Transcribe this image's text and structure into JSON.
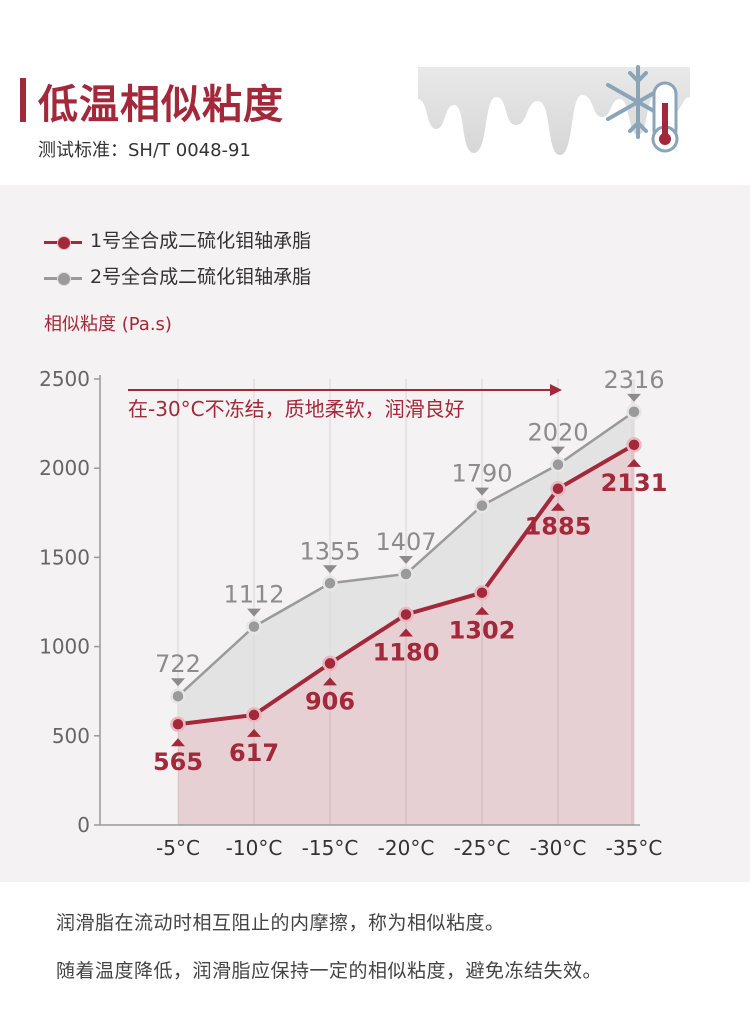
{
  "header": {
    "title": "低温相似粘度",
    "subtitle": "测试标准：SH/T 0048-91"
  },
  "colors": {
    "accent": "#a3283a",
    "series1": "#a3283a",
    "series2": "#9a9a9a",
    "panel": "#f4f2f2"
  },
  "annotation": "在-30°C不冻结，质地柔软，润滑良好",
  "footer": {
    "line1": "润滑脂在流动时相互阻止的内摩擦，称为相似粘度。",
    "line2": "随着温度降低，润滑脂应保持一定的相似粘度，避免冻结失效。"
  },
  "chart_data": {
    "type": "line",
    "categories": [
      "-5°C",
      "-10°C",
      "-15°C",
      "-20°C",
      "-25°C",
      "-30°C",
      "-35°C"
    ],
    "series": [
      {
        "name": "1号全合成二硫化钼轴承脂",
        "values": [
          565,
          617,
          906,
          1180,
          1302,
          1885,
          2131
        ]
      },
      {
        "name": "2号全合成二硫化钼轴承脂",
        "values": [
          722,
          1112,
          1355,
          1407,
          1790,
          2020,
          2316
        ]
      }
    ],
    "ylabel": "相似粘度 (Pa.s)",
    "ylim": [
      0,
      2500
    ],
    "yticks": [
      0,
      500,
      1000,
      1500,
      2000,
      2500
    ],
    "grid": true,
    "legend": "top-left"
  }
}
